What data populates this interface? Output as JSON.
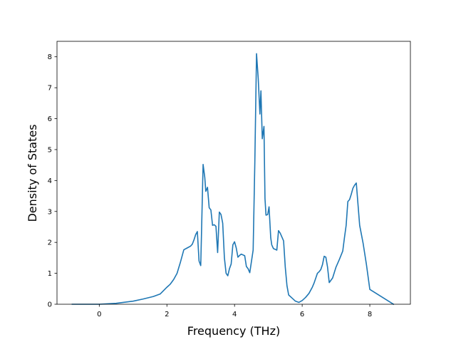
{
  "chart_data": {
    "type": "line",
    "xlabel": "Frequency (THz)",
    "ylabel": "Density of States",
    "xlim": [
      -1.25,
      9.2
    ],
    "ylim": [
      0,
      8.5
    ],
    "xticks": [
      0,
      2,
      4,
      6,
      8
    ],
    "yticks": [
      0,
      1,
      2,
      3,
      4,
      5,
      6,
      7,
      8
    ],
    "grid": false,
    "legend": "none",
    "series": [
      {
        "color": "#1f77b4",
        "x": [
          -0.8,
          0.0,
          0.5,
          1.0,
          1.3,
          1.6,
          1.8,
          2.0,
          2.1,
          2.2,
          2.3,
          2.35,
          2.4,
          2.5,
          2.6,
          2.7,
          2.75,
          2.8,
          2.85,
          2.9,
          2.95,
          3.0,
          3.02,
          3.07,
          3.12,
          3.15,
          3.2,
          3.25,
          3.3,
          3.35,
          3.4,
          3.45,
          3.5,
          3.55,
          3.6,
          3.65,
          3.7,
          3.75,
          3.8,
          3.85,
          3.9,
          3.95,
          4.0,
          4.05,
          4.1,
          4.15,
          4.2,
          4.3,
          4.35,
          4.4,
          4.45,
          4.55,
          4.6,
          4.65,
          4.7,
          4.75,
          4.78,
          4.82,
          4.87,
          4.9,
          4.93,
          4.98,
          5.02,
          5.07,
          5.1,
          5.15,
          5.25,
          5.3,
          5.35,
          5.45,
          5.5,
          5.55,
          5.6,
          5.7,
          5.8,
          5.9,
          6.0,
          6.1,
          6.2,
          6.3,
          6.35,
          6.45,
          6.5,
          6.55,
          6.6,
          6.65,
          6.7,
          6.75,
          6.8,
          6.9,
          7.0,
          7.1,
          7.2,
          7.25,
          7.3,
          7.35,
          7.4,
          7.45,
          7.5,
          7.55,
          7.6,
          7.7,
          7.8,
          7.9,
          8.0,
          8.7
        ],
        "y": [
          0.0,
          0.0,
          0.03,
          0.1,
          0.17,
          0.25,
          0.33,
          0.55,
          0.65,
          0.8,
          1.0,
          1.18,
          1.36,
          1.76,
          1.82,
          1.88,
          1.94,
          2.08,
          2.25,
          2.35,
          1.4,
          1.25,
          2.15,
          4.52,
          4.1,
          3.65,
          3.78,
          3.12,
          3.05,
          2.55,
          2.57,
          2.52,
          1.67,
          2.98,
          2.9,
          2.62,
          1.5,
          1.0,
          0.92,
          1.15,
          1.3,
          1.92,
          2.02,
          1.82,
          1.52,
          1.58,
          1.62,
          1.57,
          1.22,
          1.15,
          1.02,
          1.75,
          4.6,
          8.1,
          7.3,
          6.15,
          6.9,
          5.35,
          5.75,
          3.42,
          2.88,
          2.9,
          3.15,
          2.15,
          1.92,
          1.8,
          1.75,
          2.38,
          2.3,
          2.05,
          1.2,
          0.6,
          0.3,
          0.2,
          0.1,
          0.06,
          0.12,
          0.22,
          0.35,
          0.55,
          0.68,
          1.0,
          1.05,
          1.12,
          1.28,
          1.55,
          1.52,
          1.2,
          0.7,
          0.85,
          1.2,
          1.45,
          1.72,
          2.15,
          2.55,
          3.32,
          3.38,
          3.55,
          3.75,
          3.85,
          3.92,
          2.55,
          1.98,
          1.28,
          0.48,
          0.0
        ]
      }
    ]
  }
}
